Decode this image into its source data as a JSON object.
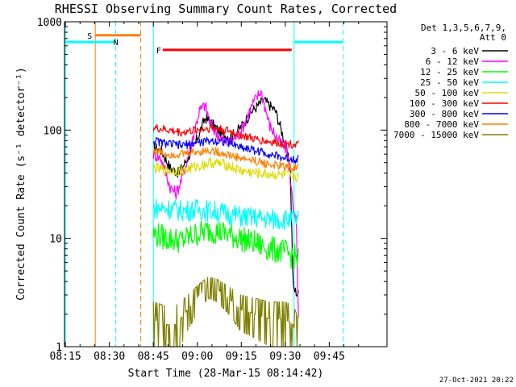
{
  "chart_data": {
    "type": "line",
    "title": "RHESSI Observing Summary Count Rates, Corrected",
    "xlabel": "Start Time (28-Mar-15 08:14:42)",
    "ylabel": "Corrected Count Rate (s⁻¹ detector⁻¹)",
    "yscale": "log",
    "ylim": [
      1,
      1000
    ],
    "xlim_minutes": [
      0,
      110
    ],
    "x_ticks": [
      {
        "label": "08:15",
        "min": 0.3
      },
      {
        "label": "08:30",
        "min": 15.3
      },
      {
        "label": "08:45",
        "min": 30.3
      },
      {
        "label": "09:00",
        "min": 45.3
      },
      {
        "label": "09:15",
        "min": 60.3
      },
      {
        "label": "09:30",
        "min": 75.3
      },
      {
        "label": "09:45",
        "min": 90.3
      }
    ],
    "y_ticks": [
      {
        "label": "1",
        "value": 1
      },
      {
        "label": "10",
        "value": 10
      },
      {
        "label": "100",
        "value": 100
      },
      {
        "label": "1000",
        "value": 1000
      }
    ],
    "legend": {
      "header": [
        "Det 1,3,5,6,7,9,",
        "Att 0"
      ],
      "placement": "right"
    },
    "timestamp": "27-Oct-2021 20:22",
    "flags": [
      {
        "label": "S",
        "color": "#ff7f00",
        "y": 750,
        "start": 10.5,
        "end": 26,
        "vline": 10.5,
        "dashed": false
      },
      {
        "label": "N",
        "color": "#00ffff",
        "y": 650,
        "start": 0,
        "end": 17.5,
        "vline": 17.5,
        "dashed": true
      },
      {
        "label": "F",
        "color": "#ff0000",
        "y": 550,
        "start": 33.5,
        "end": 77.5,
        "vline": null,
        "dashed": false
      }
    ],
    "extra_vlines": [
      {
        "x": 0.3,
        "color": "#00ffff",
        "dashed": false
      },
      {
        "x": 26,
        "color": "#ff7f00",
        "dashed": true
      },
      {
        "x": 30.3,
        "color": "#00ffff",
        "dashed": false
      },
      {
        "x": 78.3,
        "color": "#00ffff",
        "dashed": false
      },
      {
        "x": 95,
        "color": "#00ffff",
        "dashed": true
      }
    ],
    "extra_hlines": [
      {
        "y": 650,
        "start": 78.3,
        "end": 95,
        "color": "#00ffff"
      }
    ],
    "series": [
      {
        "name": "3 - 6 keV",
        "color": "#000000",
        "noise": 0.05,
        "points": [
          [
            30.3,
            70
          ],
          [
            33,
            65
          ],
          [
            36,
            45
          ],
          [
            39,
            40
          ],
          [
            42,
            55
          ],
          [
            45,
            80
          ],
          [
            48,
            130
          ],
          [
            51,
            110
          ],
          [
            54,
            90
          ],
          [
            57,
            88
          ],
          [
            60,
            105
          ],
          [
            64,
            150
          ],
          [
            68,
            190
          ],
          [
            72,
            150
          ],
          [
            75,
            80
          ],
          [
            77,
            45
          ],
          [
            78,
            3.5
          ],
          [
            79,
            3.2
          ],
          [
            80,
            3.0
          ]
        ]
      },
      {
        "name": "6 - 12 keV",
        "color": "#ff00ff",
        "noise": 0.06,
        "points": [
          [
            30.3,
            60
          ],
          [
            33,
            55
          ],
          [
            36,
            30
          ],
          [
            38,
            26
          ],
          [
            40,
            35
          ],
          [
            43,
            70
          ],
          [
            46,
            150
          ],
          [
            48,
            170
          ],
          [
            50,
            110
          ],
          [
            53,
            85
          ],
          [
            56,
            75
          ],
          [
            60,
            95
          ],
          [
            64,
            170
          ],
          [
            67,
            230
          ],
          [
            70,
            110
          ],
          [
            73,
            80
          ],
          [
            76,
            65
          ],
          [
            77,
            35
          ],
          [
            78,
            20
          ],
          [
            79,
            15
          ],
          [
            80,
            1
          ]
        ]
      },
      {
        "name": "12 - 25 keV",
        "color": "#00ff00",
        "noise": 0.12,
        "points": [
          [
            30.3,
            11
          ],
          [
            35,
            10
          ],
          [
            40,
            9.5
          ],
          [
            45,
            11
          ],
          [
            50,
            12
          ],
          [
            55,
            11
          ],
          [
            60,
            10
          ],
          [
            65,
            9
          ],
          [
            70,
            8
          ],
          [
            75,
            7.5
          ],
          [
            78,
            6.8
          ],
          [
            80,
            6.5
          ]
        ]
      },
      {
        "name": "25 - 50 keV",
        "color": "#00ffff",
        "noise": 0.1,
        "points": [
          [
            30.3,
            19
          ],
          [
            35,
            19
          ],
          [
            40,
            18
          ],
          [
            45,
            18.5
          ],
          [
            50,
            18
          ],
          [
            55,
            17
          ],
          [
            60,
            16
          ],
          [
            65,
            15.5
          ],
          [
            70,
            15
          ],
          [
            75,
            15
          ],
          [
            80,
            15
          ]
        ]
      },
      {
        "name": "50 - 100 keV",
        "color": "#dddd00",
        "noise": 0.05,
        "points": [
          [
            30.3,
            45
          ],
          [
            35,
            42
          ],
          [
            40,
            42
          ],
          [
            45,
            46
          ],
          [
            50,
            50
          ],
          [
            55,
            48
          ],
          [
            60,
            42
          ],
          [
            65,
            40
          ],
          [
            70,
            39
          ],
          [
            75,
            38
          ],
          [
            80,
            37
          ]
        ]
      },
      {
        "name": "100 - 300 keV",
        "color": "#ff0000",
        "noise": 0.04,
        "points": [
          [
            30.3,
            105
          ],
          [
            35,
            100
          ],
          [
            40,
            95
          ],
          [
            45,
            100
          ],
          [
            50,
            105
          ],
          [
            55,
            100
          ],
          [
            60,
            90
          ],
          [
            65,
            82
          ],
          [
            70,
            78
          ],
          [
            75,
            75
          ],
          [
            80,
            74
          ]
        ]
      },
      {
        "name": "300 - 800 keV",
        "color": "#0000ff",
        "noise": 0.04,
        "points": [
          [
            30.3,
            80
          ],
          [
            35,
            75
          ],
          [
            40,
            72
          ],
          [
            45,
            76
          ],
          [
            50,
            80
          ],
          [
            55,
            78
          ],
          [
            60,
            70
          ],
          [
            65,
            65
          ],
          [
            70,
            60
          ],
          [
            75,
            55
          ],
          [
            80,
            54
          ]
        ]
      },
      {
        "name": "800 - 7000 keV",
        "color": "#ff7f00",
        "noise": 0.04,
        "points": [
          [
            30.3,
            65
          ],
          [
            35,
            60
          ],
          [
            40,
            60
          ],
          [
            45,
            63
          ],
          [
            50,
            65
          ],
          [
            55,
            60
          ],
          [
            60,
            55
          ],
          [
            65,
            52
          ],
          [
            70,
            48
          ],
          [
            75,
            46
          ],
          [
            80,
            45
          ]
        ]
      },
      {
        "name": "7000 - 15000 keV",
        "color": "#808000",
        "noise": 0.0,
        "points": [
          [
            30.3,
            1.8
          ],
          [
            34,
            1.6
          ],
          [
            38,
            1.6
          ],
          [
            42,
            2.2
          ],
          [
            46,
            3.0
          ],
          [
            49,
            3.6
          ],
          [
            52,
            3.4
          ],
          [
            56,
            2.8
          ],
          [
            60,
            2.2
          ],
          [
            65,
            2.0
          ],
          [
            70,
            1.8
          ],
          [
            75,
            1.8
          ],
          [
            78,
            1.6
          ],
          [
            80,
            1.0
          ]
        ]
      }
    ]
  }
}
